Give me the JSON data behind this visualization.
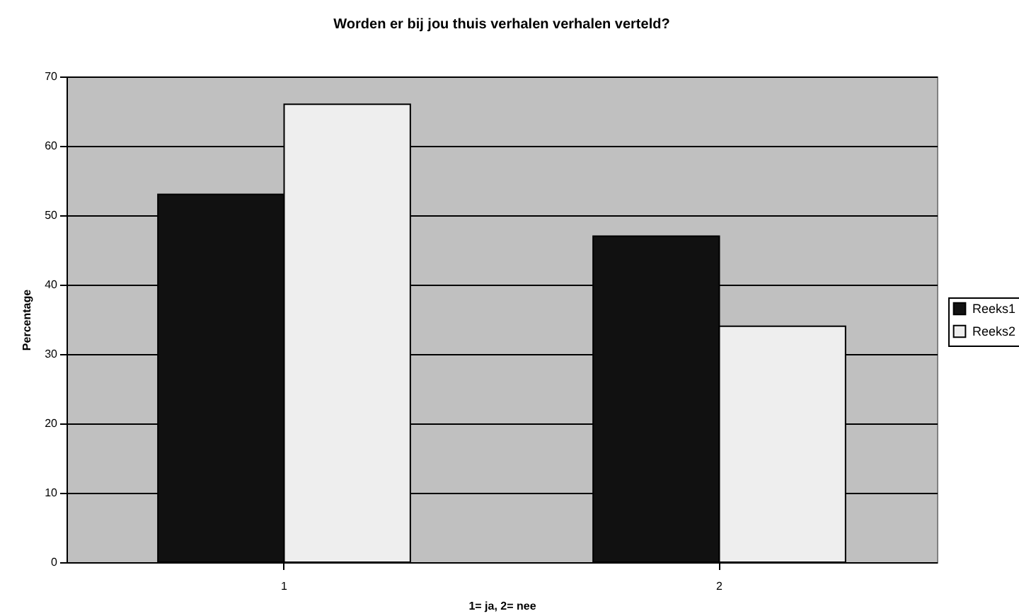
{
  "chart_data": {
    "type": "bar",
    "title": "Worden er bij jou thuis verhalen verhalen verteld?",
    "xlabel": "1= ja, 2= nee",
    "ylabel": "Percentage",
    "categories": [
      "1",
      "2"
    ],
    "series": [
      {
        "name": "Reeks1",
        "color": "#111111",
        "values": [
          53,
          47
        ]
      },
      {
        "name": "Reeks2",
        "color": "#eeeeee",
        "values": [
          66,
          34
        ]
      }
    ],
    "ylim": [
      0,
      70
    ],
    "yticks": [
      0,
      10,
      20,
      30,
      40,
      50,
      60,
      70
    ],
    "grid": "y",
    "legend": "right"
  }
}
